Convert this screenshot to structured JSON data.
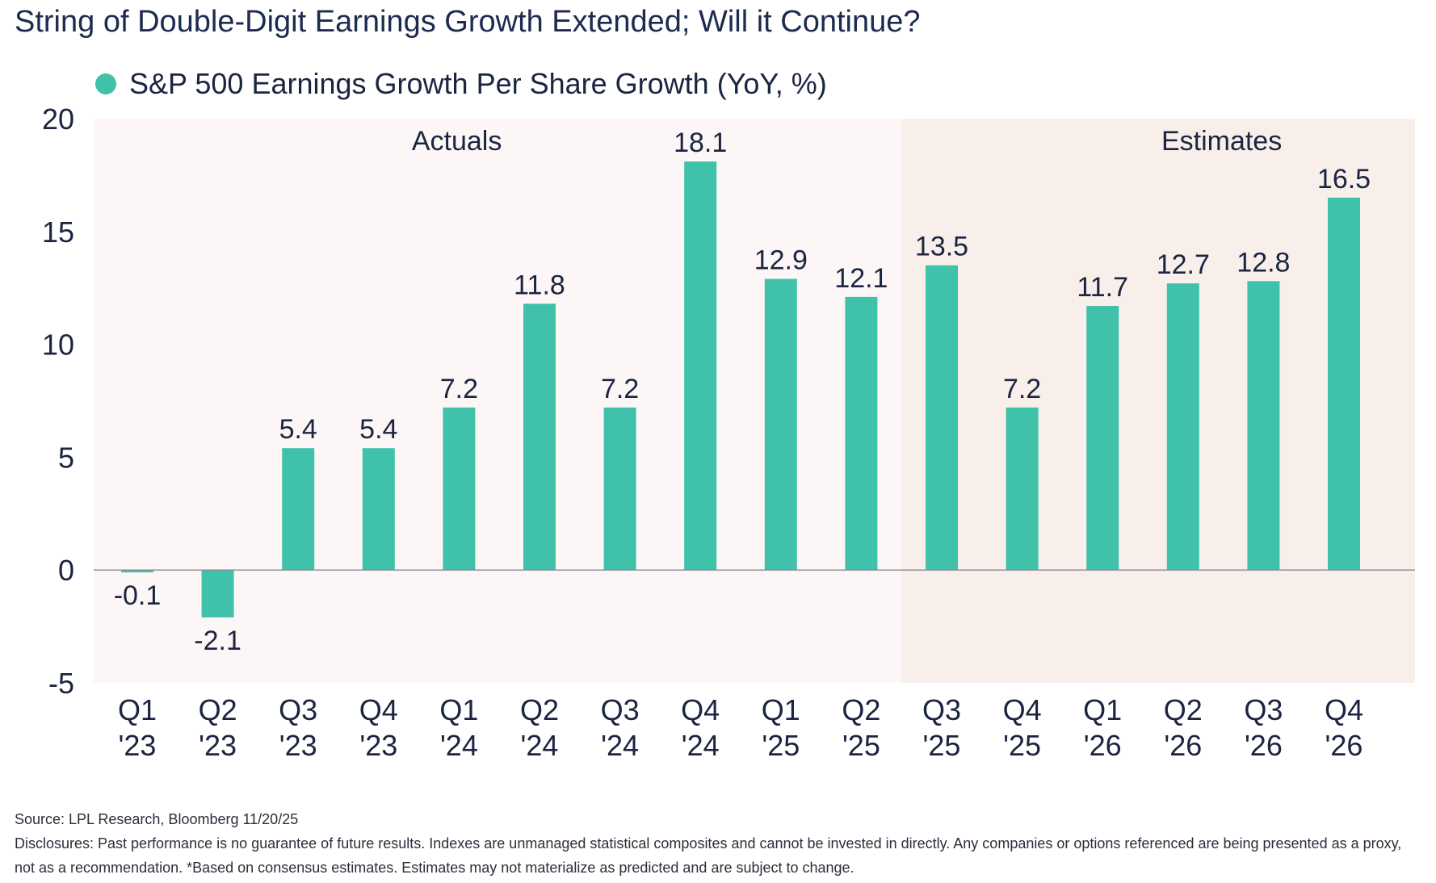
{
  "title": "String of Double-Digit Earnings Growth Extended; Will it Continue?",
  "colors": {
    "bar": "#40c1a9",
    "actuals_bg": "#fcf7f6",
    "estimates_bg": "#f8efeb",
    "text": "#1b2440"
  },
  "chart_data": {
    "type": "bar",
    "categories": [
      [
        "Q1",
        "'23"
      ],
      [
        "Q2",
        "'23"
      ],
      [
        "Q3",
        "'23"
      ],
      [
        "Q4",
        "'23"
      ],
      [
        "Q1",
        "'24"
      ],
      [
        "Q2",
        "'24"
      ],
      [
        "Q3",
        "'24"
      ],
      [
        "Q4",
        "'24"
      ],
      [
        "Q1",
        "'25"
      ],
      [
        "Q2",
        "'25"
      ],
      [
        "Q3",
        "'25"
      ],
      [
        "Q4",
        "'25"
      ],
      [
        "Q1",
        "'26"
      ],
      [
        "Q2",
        "'26"
      ],
      [
        "Q3",
        "'26"
      ],
      [
        "Q4",
        "'26"
      ]
    ],
    "series": [
      {
        "name": "S&P 500 Earnings Growth Per Share Growth (YoY, %)",
        "values": [
          -0.1,
          -2.1,
          5.4,
          5.4,
          7.2,
          11.8,
          7.2,
          18.1,
          12.9,
          12.1,
          13.5,
          7.2,
          11.7,
          12.7,
          12.8,
          16.5
        ],
        "labels": [
          "-0.1",
          "-2.1",
          "5.4",
          "5.4",
          "7.2",
          "11.8",
          "7.2",
          "18.1",
          "12.9",
          "12.1",
          "13.5",
          "7.2",
          "11.7",
          "12.7",
          "12.8",
          "16.5"
        ]
      }
    ],
    "ylim": [
      -5,
      20
    ],
    "yticks": [
      20,
      15,
      10,
      5,
      0,
      -5
    ],
    "ytick_labels": [
      "20",
      "15",
      "10",
      "5",
      "0",
      "-5"
    ],
    "regions": [
      {
        "label": "Actuals",
        "start_index": 0,
        "end_index": 9
      },
      {
        "label": "Estimates",
        "start_index": 10,
        "end_index": 15
      }
    ],
    "legend_position": "top-left",
    "grid": false
  },
  "footer": {
    "source": "Source: LPL Research, Bloomberg 11/20/25",
    "disclosures": "Disclosures: Past performance is no guarantee of future results. Indexes are unmanaged statistical composites and cannot be invested in directly. Any companies or options referenced are being presented as a proxy, not as a recommendation. *Based on consensus estimates. Estimates may not materialize as predicted and are subject to change."
  }
}
